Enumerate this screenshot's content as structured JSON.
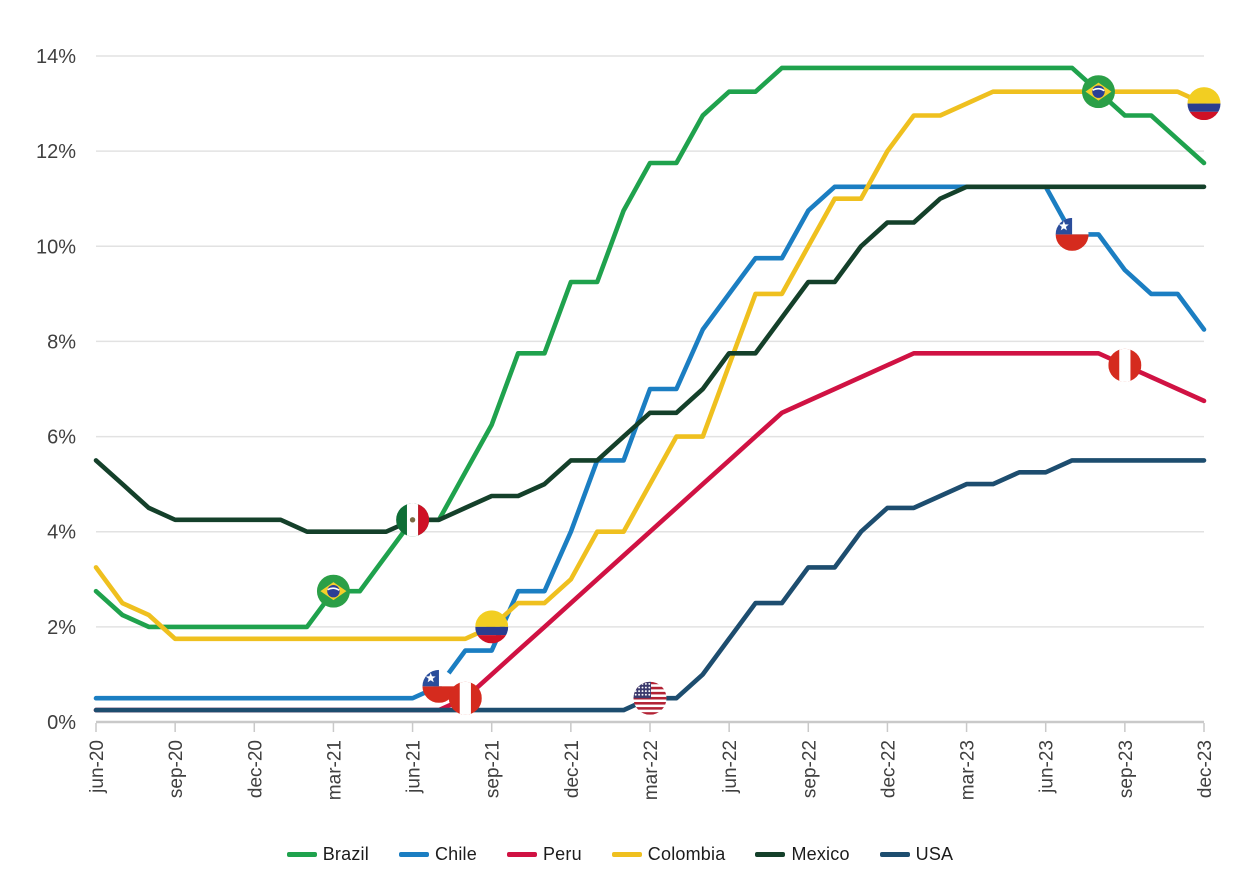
{
  "page": {
    "background": "#ffffff"
  },
  "chart_data": {
    "type": "line",
    "title": "",
    "xlabel": "",
    "ylabel": "",
    "ylim": [
      0,
      14
    ],
    "y_ticks": [
      "0%",
      "2%",
      "4%",
      "6%",
      "8%",
      "10%",
      "12%",
      "14%"
    ],
    "grid": "horizontal",
    "legend_position": "bottom",
    "x_months": [
      "jun-20",
      "jul-20",
      "aug-20",
      "sep-20",
      "oct-20",
      "nov-20",
      "dec-20",
      "jan-21",
      "feb-21",
      "mar-21",
      "apr-21",
      "may-21",
      "jun-21",
      "jul-21",
      "aug-21",
      "sep-21",
      "oct-21",
      "nov-21",
      "dec-21",
      "jan-22",
      "feb-22",
      "mar-22",
      "apr-22",
      "may-22",
      "jun-22",
      "jul-22",
      "aug-22",
      "sep-22",
      "oct-22",
      "nov-22",
      "dec-22",
      "jan-23",
      "feb-23",
      "mar-23",
      "apr-23",
      "may-23",
      "jun-23",
      "jul-23",
      "aug-23",
      "sep-23",
      "oct-23",
      "nov-23",
      "dec-23"
    ],
    "x_tick_every": 3,
    "series": [
      {
        "name": "Brazil",
        "color": "#1fa24d",
        "values": [
          2.75,
          2.25,
          2,
          2,
          2,
          2,
          2,
          2,
          2,
          2.75,
          2.75,
          3.5,
          4.25,
          4.25,
          5.25,
          6.25,
          7.75,
          7.75,
          9.25,
          9.25,
          10.75,
          11.75,
          11.75,
          12.75,
          13.25,
          13.25,
          13.75,
          13.75,
          13.75,
          13.75,
          13.75,
          13.75,
          13.75,
          13.75,
          13.75,
          13.75,
          13.75,
          13.75,
          13.25,
          12.75,
          12.75,
          12.25,
          11.75
        ]
      },
      {
        "name": "Chile",
        "color": "#1b7ec2",
        "values": [
          0.5,
          0.5,
          0.5,
          0.5,
          0.5,
          0.5,
          0.5,
          0.5,
          0.5,
          0.5,
          0.5,
          0.5,
          0.5,
          0.75,
          1.5,
          1.5,
          2.75,
          2.75,
          4,
          5.5,
          5.5,
          7,
          7,
          8.25,
          9,
          9.75,
          9.75,
          10.75,
          11.25,
          11.25,
          11.25,
          11.25,
          11.25,
          11.25,
          11.25,
          11.25,
          11.25,
          10.25,
          10.25,
          9.5,
          9,
          9,
          8.25
        ]
      },
      {
        "name": "Peru",
        "color": "#d01243",
        "values": [
          0.25,
          0.25,
          0.25,
          0.25,
          0.25,
          0.25,
          0.25,
          0.25,
          0.25,
          0.25,
          0.25,
          0.25,
          0.25,
          0.25,
          0.5,
          1,
          1.5,
          2,
          2.5,
          3,
          3.5,
          4,
          4.5,
          5,
          5.5,
          6,
          6.5,
          6.75,
          7,
          7.25,
          7.5,
          7.75,
          7.75,
          7.75,
          7.75,
          7.75,
          7.75,
          7.75,
          7.75,
          7.5,
          7.25,
          7,
          6.75
        ]
      },
      {
        "name": "Colombia",
        "color": "#efc01f",
        "values": [
          3.25,
          2.5,
          2.25,
          1.75,
          1.75,
          1.75,
          1.75,
          1.75,
          1.75,
          1.75,
          1.75,
          1.75,
          1.75,
          1.75,
          1.75,
          2,
          2.5,
          2.5,
          3,
          4,
          4,
          5,
          6,
          6,
          7.5,
          9,
          9,
          10,
          11,
          11,
          12,
          12.75,
          12.75,
          13,
          13.25,
          13.25,
          13.25,
          13.25,
          13.25,
          13.25,
          13.25,
          13.25,
          13
        ]
      },
      {
        "name": "Mexico",
        "color": "#14402a",
        "values": [
          5.5,
          5,
          4.5,
          4.25,
          4.25,
          4.25,
          4.25,
          4.25,
          4,
          4,
          4,
          4,
          4.25,
          4.25,
          4.5,
          4.75,
          4.75,
          5,
          5.5,
          5.5,
          6,
          6.5,
          6.5,
          7,
          7.75,
          7.75,
          8.5,
          9.25,
          9.25,
          10,
          10.5,
          10.5,
          11,
          11.25,
          11.25,
          11.25,
          11.25,
          11.25,
          11.25,
          11.25,
          11.25,
          11.25,
          11.25
        ]
      },
      {
        "name": "USA",
        "color": "#1d4d6f",
        "values": [
          0.25,
          0.25,
          0.25,
          0.25,
          0.25,
          0.25,
          0.25,
          0.25,
          0.25,
          0.25,
          0.25,
          0.25,
          0.25,
          0.25,
          0.25,
          0.25,
          0.25,
          0.25,
          0.25,
          0.25,
          0.25,
          0.5,
          0.5,
          1,
          1.75,
          2.5,
          2.5,
          3.25,
          3.25,
          4,
          4.5,
          4.5,
          4.75,
          5,
          5,
          5.25,
          5.25,
          5.5,
          5.5,
          5.5,
          5.5,
          5.5,
          5.5
        ]
      }
    ],
    "flag_markers": [
      {
        "series": "Brazil",
        "month": "mar-21",
        "value": 2.75
      },
      {
        "series": "Mexico",
        "month": "jun-21",
        "value": 4.25
      },
      {
        "series": "Chile",
        "month": "jul-21",
        "value": 0.75
      },
      {
        "series": "Peru",
        "month": "aug-21",
        "value": 0.5
      },
      {
        "series": "Colombia",
        "month": "sep-21",
        "value": 2.0
      },
      {
        "series": "USA",
        "month": "mar-22",
        "value": 0.5
      },
      {
        "series": "Chile",
        "month": "jul-23",
        "value": 10.25
      },
      {
        "series": "Brazil",
        "month": "aug-23",
        "value": 13.25
      },
      {
        "series": "Peru",
        "month": "sep-23",
        "value": 7.5
      },
      {
        "series": "Colombia",
        "month": "dec-23",
        "value": 13.0
      }
    ],
    "style": {
      "gridline_color": "#e2e2e2",
      "axis_color": "#c9c9c9",
      "tick_label_color": "#3f3f3f"
    }
  }
}
